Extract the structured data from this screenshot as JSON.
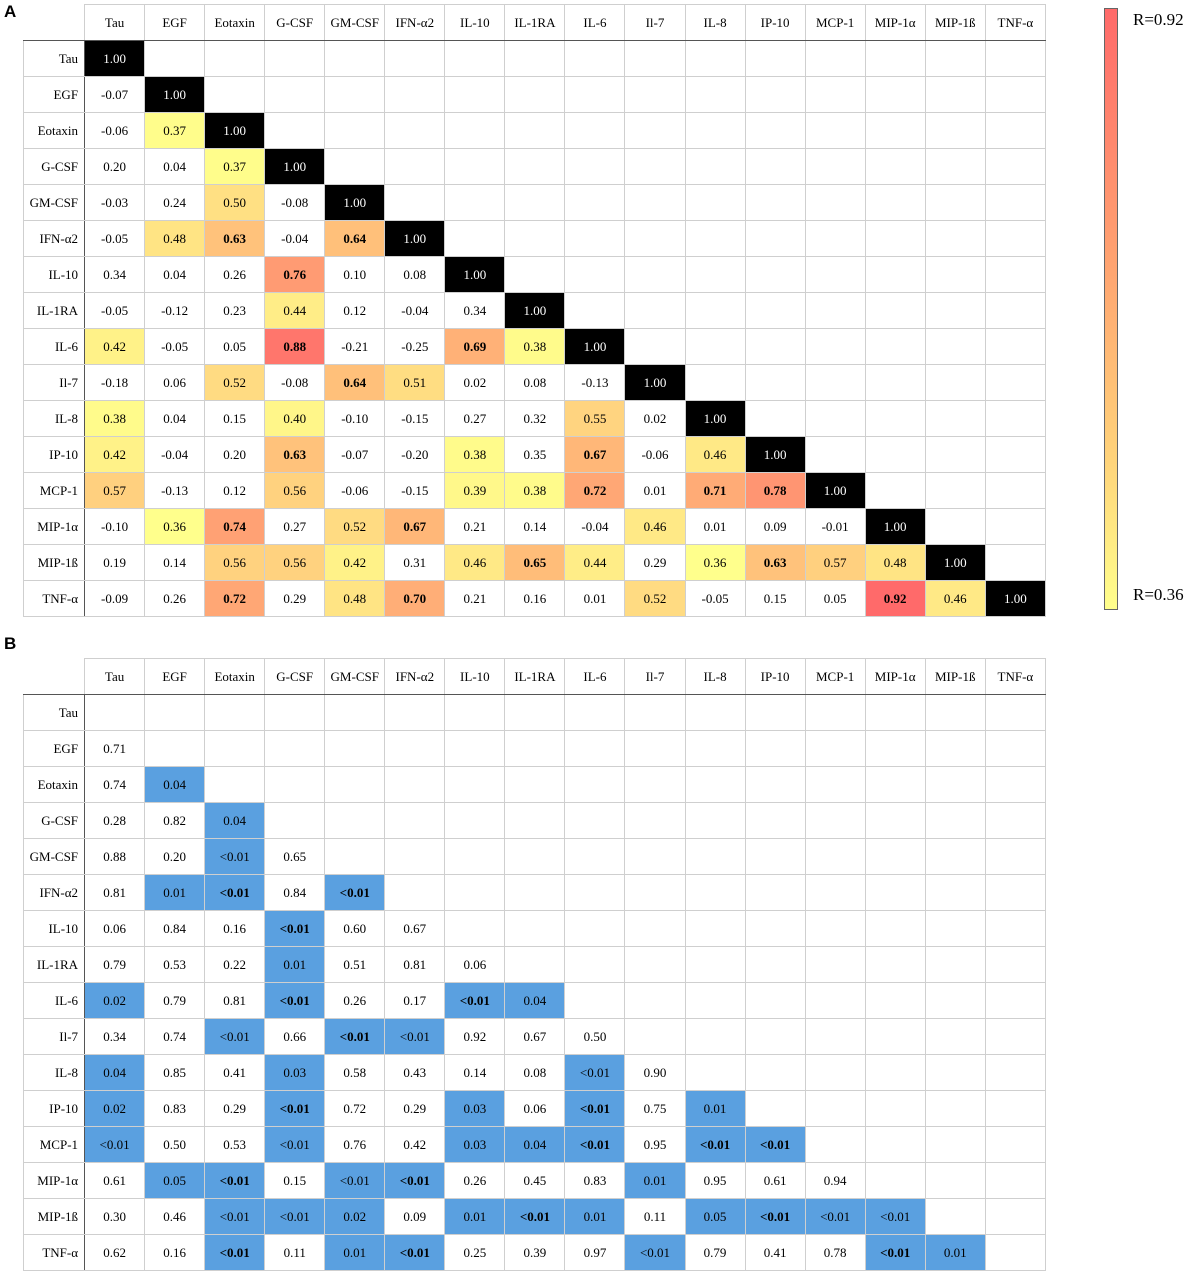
{
  "panel_a_label": "A",
  "panel_b_label": "B",
  "colorbar": {
    "max_label": "R=0.92",
    "min_label": "R=0.36",
    "max": 0.92,
    "min": 0.36,
    "colors": {
      "high": "#ff6a6a",
      "mid": "#ffc07a",
      "low": "#ffff8c"
    }
  },
  "chart_data": [
    {
      "type": "heatmap",
      "panel": "A",
      "columns": [
        "Tau",
        "EGF",
        "Eotaxin",
        "G-CSF",
        "GM-CSF",
        "IFN-α2",
        "IL-10",
        "IL-1RA",
        "IL-6",
        "Il-7",
        "IL-8",
        "IP-10",
        "MCP-1",
        "MIP-1α",
        "MIP-1ß",
        "TNF-α"
      ],
      "rows": [
        "Tau",
        "EGF",
        "Eotaxin",
        "G-CSF",
        "GM-CSF",
        "IFN-α2",
        "IL-10",
        "IL-1RA",
        "IL-6",
        "Il-7",
        "IL-8",
        "IP-10",
        "MCP-1",
        "MIP-1α",
        "MIP-1ß",
        "TNF-α"
      ],
      "values": [
        [
          "1.00"
        ],
        [
          "-0.07",
          "1.00"
        ],
        [
          "-0.06",
          "0.37",
          "1.00"
        ],
        [
          "0.20",
          "0.04",
          "0.37",
          "1.00"
        ],
        [
          "-0.03",
          "0.24",
          "0.50",
          "-0.08",
          "1.00"
        ],
        [
          "-0.05",
          "0.48",
          "0.63",
          "-0.04",
          "0.64",
          "1.00"
        ],
        [
          "0.34",
          "0.04",
          "0.26",
          "0.76",
          "0.10",
          "0.08",
          "1.00"
        ],
        [
          "-0.05",
          "-0.12",
          "0.23",
          "0.44",
          "0.12",
          "-0.04",
          "0.34",
          "1.00"
        ],
        [
          "0.42",
          "-0.05",
          "0.05",
          "0.88",
          "-0.21",
          "-0.25",
          "0.69",
          "0.38",
          "1.00"
        ],
        [
          "-0.18",
          "0.06",
          "0.52",
          "-0.08",
          "0.64",
          "0.51",
          "0.02",
          "0.08",
          "-0.13",
          "1.00"
        ],
        [
          "0.38",
          "0.04",
          "0.15",
          "0.40",
          "-0.10",
          "-0.15",
          "0.27",
          "0.32",
          "0.55",
          "0.02",
          "1.00"
        ],
        [
          "0.42",
          "-0.04",
          "0.20",
          "0.63",
          "-0.07",
          "-0.20",
          "0.38",
          "0.35",
          "0.67",
          "-0.06",
          "0.46",
          "1.00"
        ],
        [
          "0.57",
          "-0.13",
          "0.12",
          "0.56",
          "-0.06",
          "-0.15",
          "0.39",
          "0.38",
          "0.72",
          "0.01",
          "0.71",
          "0.78",
          "1.00"
        ],
        [
          "-0.10",
          "0.36",
          "0.74",
          "0.27",
          "0.52",
          "0.67",
          "0.21",
          "0.14",
          "-0.04",
          "0.46",
          "0.01",
          "0.09",
          "-0.01",
          "1.00"
        ],
        [
          "0.19",
          "0.14",
          "0.56",
          "0.56",
          "0.42",
          "0.31",
          "0.46",
          "0.65",
          "0.44",
          "0.29",
          "0.36",
          "0.63",
          "0.57",
          "0.48",
          "1.00"
        ],
        [
          "-0.09",
          "0.26",
          "0.72",
          "0.29",
          "0.48",
          "0.70",
          "0.21",
          "0.16",
          "0.01",
          "0.52",
          "-0.05",
          "0.15",
          "0.05",
          "0.92",
          "0.46",
          "1.00"
        ]
      ],
      "colored_cells": [
        [
          2,
          1
        ],
        [
          3,
          2
        ],
        [
          4,
          2
        ],
        [
          5,
          1
        ],
        [
          5,
          2
        ],
        [
          5,
          4
        ],
        [
          6,
          3
        ],
        [
          7,
          3
        ],
        [
          8,
          0
        ],
        [
          8,
          3
        ],
        [
          8,
          6
        ],
        [
          8,
          7
        ],
        [
          9,
          2
        ],
        [
          9,
          4
        ],
        [
          9,
          5
        ],
        [
          10,
          0
        ],
        [
          10,
          3
        ],
        [
          10,
          8
        ],
        [
          11,
          0
        ],
        [
          11,
          3
        ],
        [
          11,
          6
        ],
        [
          11,
          8
        ],
        [
          11,
          10
        ],
        [
          12,
          0
        ],
        [
          12,
          3
        ],
        [
          12,
          6
        ],
        [
          12,
          7
        ],
        [
          12,
          8
        ],
        [
          12,
          10
        ],
        [
          12,
          11
        ],
        [
          13,
          1
        ],
        [
          13,
          2
        ],
        [
          13,
          4
        ],
        [
          13,
          5
        ],
        [
          13,
          9
        ],
        [
          14,
          2
        ],
        [
          14,
          3
        ],
        [
          14,
          4
        ],
        [
          14,
          6
        ],
        [
          14,
          7
        ],
        [
          14,
          8
        ],
        [
          14,
          10
        ],
        [
          14,
          11
        ],
        [
          14,
          12
        ],
        [
          14,
          13
        ],
        [
          15,
          2
        ],
        [
          15,
          4
        ],
        [
          15,
          5
        ],
        [
          15,
          9
        ],
        [
          15,
          13
        ],
        [
          15,
          14
        ]
      ],
      "bold_cells": [
        [
          5,
          2
        ],
        [
          5,
          4
        ],
        [
          6,
          3
        ],
        [
          8,
          3
        ],
        [
          8,
          6
        ],
        [
          9,
          4
        ],
        [
          11,
          3
        ],
        [
          11,
          8
        ],
        [
          12,
          8
        ],
        [
          12,
          10
        ],
        [
          12,
          11
        ],
        [
          13,
          2
        ],
        [
          13,
          5
        ],
        [
          14,
          7
        ],
        [
          14,
          11
        ],
        [
          15,
          2
        ],
        [
          15,
          5
        ],
        [
          15,
          13
        ]
      ]
    },
    {
      "type": "table",
      "panel": "B",
      "columns": [
        "Tau",
        "EGF",
        "Eotaxin",
        "G-CSF",
        "GM-CSF",
        "IFN-α2",
        "IL-10",
        "IL-1RA",
        "IL-6",
        "Il-7",
        "IL-8",
        "IP-10",
        "MCP-1",
        "MIP-1α",
        "MIP-1ß",
        "TNF-α"
      ],
      "rows": [
        "Tau",
        "EGF",
        "Eotaxin",
        "G-CSF",
        "GM-CSF",
        "IFN-α2",
        "IL-10",
        "IL-1RA",
        "IL-6",
        "Il-7",
        "IL-8",
        "IP-10",
        "MCP-1",
        "MIP-1α",
        "MIP-1ß",
        "TNF-α"
      ],
      "values": [
        [],
        [
          "0.71"
        ],
        [
          "0.74",
          "0.04"
        ],
        [
          "0.28",
          "0.82",
          "0.04"
        ],
        [
          "0.88",
          "0.20",
          "<0.01",
          "0.65"
        ],
        [
          "0.81",
          "0.01",
          "<0.01",
          "0.84",
          "<0.01"
        ],
        [
          "0.06",
          "0.84",
          "0.16",
          "<0.01",
          "0.60",
          "0.67"
        ],
        [
          "0.79",
          "0.53",
          "0.22",
          "0.01",
          "0.51",
          "0.81",
          "0.06"
        ],
        [
          "0.02",
          "0.79",
          "0.81",
          "<0.01",
          "0.26",
          "0.17",
          "<0.01",
          "0.04"
        ],
        [
          "0.34",
          "0.74",
          "<0.01",
          "0.66",
          "<0.01",
          "<0.01",
          "0.92",
          "0.67",
          "0.50"
        ],
        [
          "0.04",
          "0.85",
          "0.41",
          "0.03",
          "0.58",
          "0.43",
          "0.14",
          "0.08",
          "<0.01",
          "0.90"
        ],
        [
          "0.02",
          "0.83",
          "0.29",
          "<0.01",
          "0.72",
          "0.29",
          "0.03",
          "0.06",
          "<0.01",
          "0.75",
          "0.01"
        ],
        [
          "<0.01",
          "0.50",
          "0.53",
          "<0.01",
          "0.76",
          "0.42",
          "0.03",
          "0.04",
          "<0.01",
          "0.95",
          "<0.01",
          "<0.01"
        ],
        [
          "0.61",
          "0.05",
          "<0.01",
          "0.15",
          "<0.01",
          "<0.01",
          "0.26",
          "0.45",
          "0.83",
          "0.01",
          "0.95",
          "0.61",
          "0.94"
        ],
        [
          "0.30",
          "0.46",
          "<0.01",
          "<0.01",
          "0.02",
          "0.09",
          "0.01",
          "<0.01",
          "0.01",
          "0.11",
          "0.05",
          "<0.01",
          "<0.01",
          "<0.01"
        ],
        [
          "0.62",
          "0.16",
          "<0.01",
          "0.11",
          "0.01",
          "<0.01",
          "0.25",
          "0.39",
          "0.97",
          "<0.01",
          "0.79",
          "0.41",
          "0.78",
          "<0.01",
          "0.01"
        ]
      ],
      "highlight_color": "#5aa0e0",
      "highlight_cells": [
        [
          2,
          1
        ],
        [
          3,
          2
        ],
        [
          4,
          2
        ],
        [
          5,
          1
        ],
        [
          5,
          2
        ],
        [
          5,
          4
        ],
        [
          6,
          3
        ],
        [
          7,
          3
        ],
        [
          8,
          0
        ],
        [
          8,
          3
        ],
        [
          8,
          6
        ],
        [
          8,
          7
        ],
        [
          9,
          2
        ],
        [
          9,
          4
        ],
        [
          9,
          5
        ],
        [
          10,
          0
        ],
        [
          10,
          3
        ],
        [
          10,
          8
        ],
        [
          11,
          0
        ],
        [
          11,
          3
        ],
        [
          11,
          6
        ],
        [
          11,
          8
        ],
        [
          11,
          10
        ],
        [
          12,
          0
        ],
        [
          12,
          3
        ],
        [
          12,
          6
        ],
        [
          12,
          7
        ],
        [
          12,
          8
        ],
        [
          12,
          10
        ],
        [
          12,
          11
        ],
        [
          13,
          1
        ],
        [
          13,
          2
        ],
        [
          13,
          4
        ],
        [
          13,
          5
        ],
        [
          13,
          9
        ],
        [
          14,
          2
        ],
        [
          14,
          3
        ],
        [
          14,
          4
        ],
        [
          14,
          6
        ],
        [
          14,
          7
        ],
        [
          14,
          8
        ],
        [
          14,
          10
        ],
        [
          14,
          11
        ],
        [
          14,
          12
        ],
        [
          14,
          13
        ],
        [
          15,
          2
        ],
        [
          15,
          4
        ],
        [
          15,
          5
        ],
        [
          15,
          9
        ],
        [
          15,
          13
        ],
        [
          15,
          14
        ]
      ],
      "bold_cells": [
        [
          5,
          4
        ],
        [
          5,
          2
        ],
        [
          6,
          3
        ],
        [
          8,
          3
        ],
        [
          8,
          6
        ],
        [
          9,
          4
        ],
        [
          11,
          3
        ],
        [
          11,
          8
        ],
        [
          12,
          10
        ],
        [
          12,
          11
        ],
        [
          12,
          8
        ],
        [
          13,
          2
        ],
        [
          13,
          5
        ],
        [
          14,
          7
        ],
        [
          14,
          11
        ],
        [
          15,
          2
        ],
        [
          15,
          5
        ],
        [
          15,
          13
        ]
      ]
    }
  ]
}
